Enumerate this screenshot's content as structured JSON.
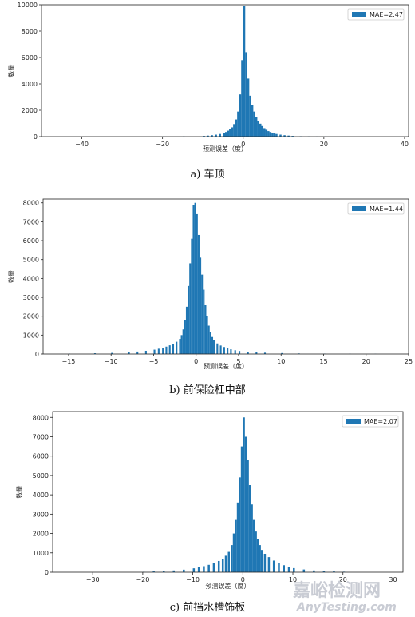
{
  "chart_data": [
    {
      "type": "bar",
      "caption": "a) 车顶",
      "xlabel": "预测误差（度）",
      "ylabel": "数量",
      "legend": "MAE=2.47",
      "legend_position": "top-right",
      "color": "#1f77b4",
      "xlim": [
        -50,
        41
      ],
      "ylim": [
        0,
        10000
      ],
      "xticks": [
        -40,
        -20,
        0,
        20,
        40
      ],
      "yticks": [
        0,
        2000,
        4000,
        6000,
        8000,
        10000
      ],
      "bin_width": 0.5,
      "bins": [
        [
          -20,
          10
        ],
        [
          -15,
          20
        ],
        [
          -10,
          60
        ],
        [
          -9,
          80
        ],
        [
          -8,
          110
        ],
        [
          -7,
          150
        ],
        [
          -6,
          200
        ],
        [
          -5,
          280
        ],
        [
          -4.5,
          350
        ],
        [
          -4,
          450
        ],
        [
          -3.5,
          560
        ],
        [
          -3,
          700
        ],
        [
          -2.5,
          950
        ],
        [
          -2,
          1300
        ],
        [
          -1.5,
          1900
        ],
        [
          -1,
          3200
        ],
        [
          -0.5,
          5800
        ],
        [
          0,
          9900
        ],
        [
          0.5,
          6400
        ],
        [
          1,
          4400
        ],
        [
          1.5,
          3100
        ],
        [
          2,
          2400
        ],
        [
          2.5,
          1900
        ],
        [
          3,
          1500
        ],
        [
          3.5,
          1200
        ],
        [
          4,
          980
        ],
        [
          4.5,
          800
        ],
        [
          5,
          640
        ],
        [
          5.5,
          520
        ],
        [
          6,
          420
        ],
        [
          6.5,
          350
        ],
        [
          7,
          290
        ],
        [
          7.5,
          240
        ],
        [
          8,
          200
        ],
        [
          9,
          150
        ],
        [
          10,
          110
        ],
        [
          11,
          80
        ],
        [
          12,
          55
        ],
        [
          14,
          30
        ],
        [
          16,
          18
        ],
        [
          18,
          10
        ],
        [
          20,
          5
        ]
      ]
    },
    {
      "type": "bar",
      "caption": "b) 前保险杠中部",
      "xlabel": "预测误差（度）",
      "ylabel": "数量",
      "legend": "MAE=1.44",
      "legend_position": "top-right",
      "color": "#1f77b4",
      "xlim": [
        -18,
        25
      ],
      "ylim": [
        0,
        8200
      ],
      "xticks": [
        -15,
        -10,
        -5,
        0,
        5,
        10,
        15,
        20,
        25
      ],
      "yticks": [
        0,
        1000,
        2000,
        3000,
        4000,
        5000,
        6000,
        7000,
        8000
      ],
      "bin_width": 0.2,
      "bins": [
        [
          -15,
          20
        ],
        [
          -12,
          40
        ],
        [
          -10,
          60
        ],
        [
          -8,
          100
        ],
        [
          -7,
          130
        ],
        [
          -6,
          170
        ],
        [
          -5,
          230
        ],
        [
          -4.5,
          280
        ],
        [
          -4,
          330
        ],
        [
          -3.6,
          390
        ],
        [
          -3.2,
          460
        ],
        [
          -2.8,
          540
        ],
        [
          -2.4,
          650
        ],
        [
          -2.0,
          800
        ],
        [
          -1.8,
          1000
        ],
        [
          -1.6,
          1300
        ],
        [
          -1.4,
          1800
        ],
        [
          -1.2,
          2500
        ],
        [
          -1.0,
          3600
        ],
        [
          -0.8,
          4800
        ],
        [
          -0.6,
          6100
        ],
        [
          -0.4,
          7900
        ],
        [
          -0.2,
          8000
        ],
        [
          0.0,
          7400
        ],
        [
          0.2,
          6300
        ],
        [
          0.4,
          5100
        ],
        [
          0.6,
          4200
        ],
        [
          0.8,
          3400
        ],
        [
          1.0,
          2600
        ],
        [
          1.2,
          2000
        ],
        [
          1.4,
          1500
        ],
        [
          1.6,
          1150
        ],
        [
          1.8,
          900
        ],
        [
          2.0,
          720
        ],
        [
          2.4,
          560
        ],
        [
          2.8,
          450
        ],
        [
          3.2,
          370
        ],
        [
          3.6,
          300
        ],
        [
          4.0,
          250
        ],
        [
          4.5,
          200
        ],
        [
          5.0,
          160
        ],
        [
          6,
          120
        ],
        [
          7,
          90
        ],
        [
          8,
          70
        ],
        [
          10,
          50
        ],
        [
          12,
          30
        ],
        [
          15,
          20
        ],
        [
          18,
          15
        ],
        [
          21,
          10
        ]
      ]
    },
    {
      "type": "bar",
      "caption": "c) 前挡水槽饰板",
      "xlabel": "预测误差（度）",
      "ylabel": "数量",
      "legend": "MAE=2.07",
      "legend_position": "top-right",
      "color": "#1f77b4",
      "xlim": [
        -38,
        32
      ],
      "ylim": [
        0,
        8300
      ],
      "xticks": [
        -30,
        -20,
        -10,
        0,
        10,
        20,
        30
      ],
      "yticks": [
        0,
        1000,
        2000,
        3000,
        4000,
        5000,
        6000,
        7000,
        8000
      ],
      "bin_width": 0.4,
      "bins": [
        [
          -20,
          20
        ],
        [
          -18,
          40
        ],
        [
          -16,
          60
        ],
        [
          -14,
          90
        ],
        [
          -12,
          130
        ],
        [
          -10,
          200
        ],
        [
          -9,
          250
        ],
        [
          -8,
          310
        ],
        [
          -7,
          380
        ],
        [
          -6,
          470
        ],
        [
          -5,
          580
        ],
        [
          -4.2,
          700
        ],
        [
          -3.6,
          850
        ],
        [
          -3.0,
          1050
        ],
        [
          -2.4,
          1400
        ],
        [
          -2.0,
          2000
        ],
        [
          -1.6,
          2700
        ],
        [
          -1.2,
          3600
        ],
        [
          -0.8,
          4900
        ],
        [
          -0.4,
          6500
        ],
        [
          0.0,
          8000
        ],
        [
          0.4,
          7000
        ],
        [
          0.8,
          5800
        ],
        [
          1.2,
          4500
        ],
        [
          1.6,
          3500
        ],
        [
          2.0,
          2700
        ],
        [
          2.4,
          2100
        ],
        [
          2.8,
          1700
        ],
        [
          3.2,
          1400
        ],
        [
          3.6,
          1150
        ],
        [
          4.2,
          950
        ],
        [
          5,
          780
        ],
        [
          6,
          600
        ],
        [
          7,
          470
        ],
        [
          8,
          360
        ],
        [
          9,
          280
        ],
        [
          10,
          210
        ],
        [
          12,
          140
        ],
        [
          14,
          90
        ],
        [
          16,
          60
        ],
        [
          18,
          40
        ],
        [
          20,
          25
        ]
      ]
    }
  ],
  "watermark": {
    "line1": "嘉峪检测网",
    "line2": "AnyTesting.com"
  }
}
